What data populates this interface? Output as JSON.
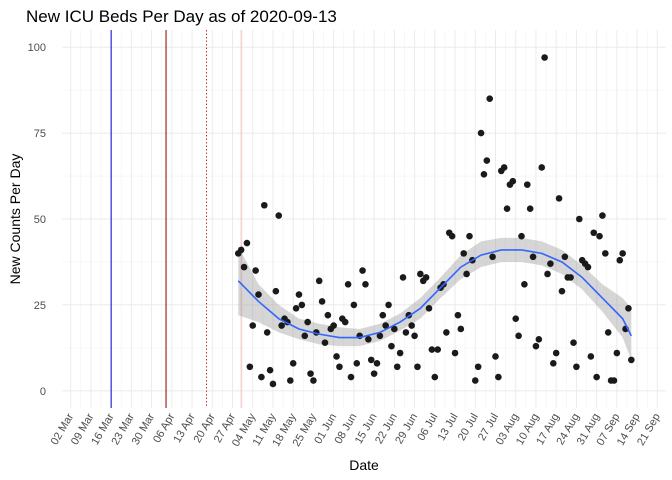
{
  "chart_data": {
    "type": "scatter",
    "title": "New ICU Beds Per Day as of 2020-09-13",
    "x_label": "Date",
    "y_label": "New Counts Per Day",
    "x": [
      "29 Apr",
      "30 Apr",
      "01 May",
      "02 May",
      "03 May",
      "04 May",
      "05 May",
      "06 May",
      "07 May",
      "08 May",
      "09 May",
      "10 May",
      "11 May",
      "12 May",
      "13 May",
      "14 May",
      "15 May",
      "16 May",
      "17 May",
      "18 May",
      "19 May",
      "20 May",
      "21 May",
      "22 May",
      "23 May",
      "24 May",
      "25 May",
      "26 May",
      "27 May",
      "28 May",
      "29 May",
      "30 May",
      "31 May",
      "01 Jun",
      "02 Jun",
      "03 Jun",
      "04 Jun",
      "05 Jun",
      "06 Jun",
      "07 Jun",
      "08 Jun",
      "09 Jun",
      "10 Jun",
      "11 Jun",
      "12 Jun",
      "13 Jun",
      "14 Jun",
      "15 Jun",
      "16 Jun",
      "17 Jun",
      "18 Jun",
      "19 Jun",
      "20 Jun",
      "21 Jun",
      "22 Jun",
      "23 Jun",
      "24 Jun",
      "25 Jun",
      "26 Jun",
      "27 Jun",
      "28 Jun",
      "29 Jun",
      "30 Jun",
      "01 Jul",
      "02 Jul",
      "03 Jul",
      "04 Jul",
      "05 Jul",
      "06 Jul",
      "07 Jul",
      "08 Jul",
      "09 Jul",
      "10 Jul",
      "11 Jul",
      "12 Jul",
      "13 Jul",
      "14 Jul",
      "15 Jul",
      "16 Jul",
      "17 Jul",
      "18 Jul",
      "19 Jul",
      "20 Jul",
      "21 Jul",
      "22 Jul",
      "23 Jul",
      "24 Jul",
      "25 Jul",
      "26 Jul",
      "27 Jul",
      "28 Jul",
      "29 Jul",
      "30 Jul",
      "31 Jul",
      "01 Aug",
      "02 Aug",
      "03 Aug",
      "04 Aug",
      "05 Aug",
      "06 Aug",
      "07 Aug",
      "08 Aug",
      "09 Aug",
      "10 Aug",
      "11 Aug",
      "12 Aug",
      "13 Aug",
      "14 Aug",
      "15 Aug",
      "16 Aug",
      "17 Aug",
      "18 Aug",
      "19 Aug",
      "20 Aug",
      "21 Aug",
      "22 Aug",
      "23 Aug",
      "24 Aug",
      "25 Aug",
      "26 Aug",
      "27 Aug",
      "28 Aug",
      "29 Aug",
      "30 Aug",
      "31 Aug",
      "01 Sep",
      "02 Sep",
      "03 Sep",
      "04 Sep",
      "05 Sep",
      "06 Sep",
      "07 Sep",
      "08 Sep",
      "09 Sep",
      "10 Sep",
      "11 Sep",
      "12 Sep"
    ],
    "values": [
      40,
      41,
      36,
      43,
      7,
      19,
      35,
      28,
      4,
      54,
      17,
      6,
      2,
      29,
      51,
      19,
      21,
      20,
      3,
      8,
      24,
      28,
      25,
      16,
      20,
      5,
      3,
      17,
      32,
      26,
      14,
      22,
      18,
      19,
      10,
      7,
      21,
      20,
      31,
      4,
      25,
      8,
      16,
      35,
      31,
      15,
      9,
      5,
      8,
      16,
      22,
      19,
      25,
      13,
      18,
      7,
      11,
      33,
      17,
      22,
      19,
      16,
      7,
      34,
      32,
      33,
      24,
      12,
      4,
      12,
      30,
      31,
      17,
      46,
      45,
      11,
      22,
      18,
      40,
      34,
      45,
      38,
      3,
      7,
      75,
      63,
      67,
      85,
      39,
      10,
      4,
      64,
      65,
      53,
      60,
      61,
      21,
      16,
      45,
      31,
      60,
      53,
      39,
      13,
      15,
      65,
      97,
      34,
      37,
      8,
      11,
      56,
      29,
      39,
      33,
      33,
      14,
      7,
      50,
      38,
      37,
      36,
      10,
      46,
      4,
      45,
      51,
      40,
      17,
      3,
      3,
      11,
      38,
      40,
      18,
      24,
      9
    ],
    "color": "#1a1a1a",
    "smooth": {
      "color": "#3366ff",
      "band_color": "#999999",
      "x": [
        "29 Apr",
        "06 May",
        "13 May",
        "20 May",
        "27 May",
        "03 Jun",
        "10 Jun",
        "17 Jun",
        "24 Jun",
        "01 Jul",
        "08 Jul",
        "15 Jul",
        "22 Jul",
        "29 Jul",
        "05 Aug",
        "12 Aug",
        "19 Aug",
        "26 Aug",
        "02 Sep",
        "09 Sep",
        "12 Sep"
      ],
      "values": [
        32,
        26,
        21,
        18,
        16.5,
        15.5,
        15.5,
        17,
        20,
        24,
        30,
        36,
        39.5,
        41,
        41,
        40,
        37.5,
        33,
        27,
        21,
        16
      ],
      "lower": [
        22,
        20,
        17,
        15,
        13.5,
        13,
        13,
        14.5,
        17.5,
        21,
        27,
        32.5,
        36,
        37.5,
        37.5,
        36.5,
        34,
        29.5,
        23,
        15.5,
        9
      ],
      "upper": [
        42,
        31,
        25,
        21,
        19.5,
        18.5,
        18,
        19.5,
        22.5,
        27,
        33,
        39.5,
        43.5,
        44.5,
        44.5,
        43.5,
        41,
        36.5,
        31,
        27,
        24
      ]
    },
    "vlines": [
      {
        "x": "16 Mar",
        "color": "#0000cc",
        "style": "solid"
      },
      {
        "x": "04 Apr",
        "color": "#8b0000",
        "style": "solid"
      },
      {
        "x": "18 Apr",
        "color": "#cc3333",
        "style": "dotted"
      },
      {
        "x": "30 Apr",
        "color": "#f2bcbc",
        "style": "solid"
      }
    ],
    "xlim": [
      "28 Feb",
      "24 Sep"
    ],
    "xticks": [
      "02 Mar",
      "09 Mar",
      "16 Mar",
      "23 Mar",
      "30 Mar",
      "06 Apr",
      "13 Apr",
      "20 Apr",
      "27 Apr",
      "04 May",
      "11 May",
      "18 May",
      "25 May",
      "01 Jun",
      "08 Jun",
      "15 Jun",
      "22 Jun",
      "29 Jun",
      "06 Jul",
      "13 Jul",
      "20 Jul",
      "27 Jul",
      "03 Aug",
      "10 Aug",
      "17 Aug",
      "24 Aug",
      "31 Aug",
      "07 Sep",
      "14 Sep",
      "21 Sep"
    ],
    "ylim": [
      -5,
      105
    ],
    "yticks": [
      0,
      25,
      50,
      75,
      100
    ],
    "grid": true
  }
}
